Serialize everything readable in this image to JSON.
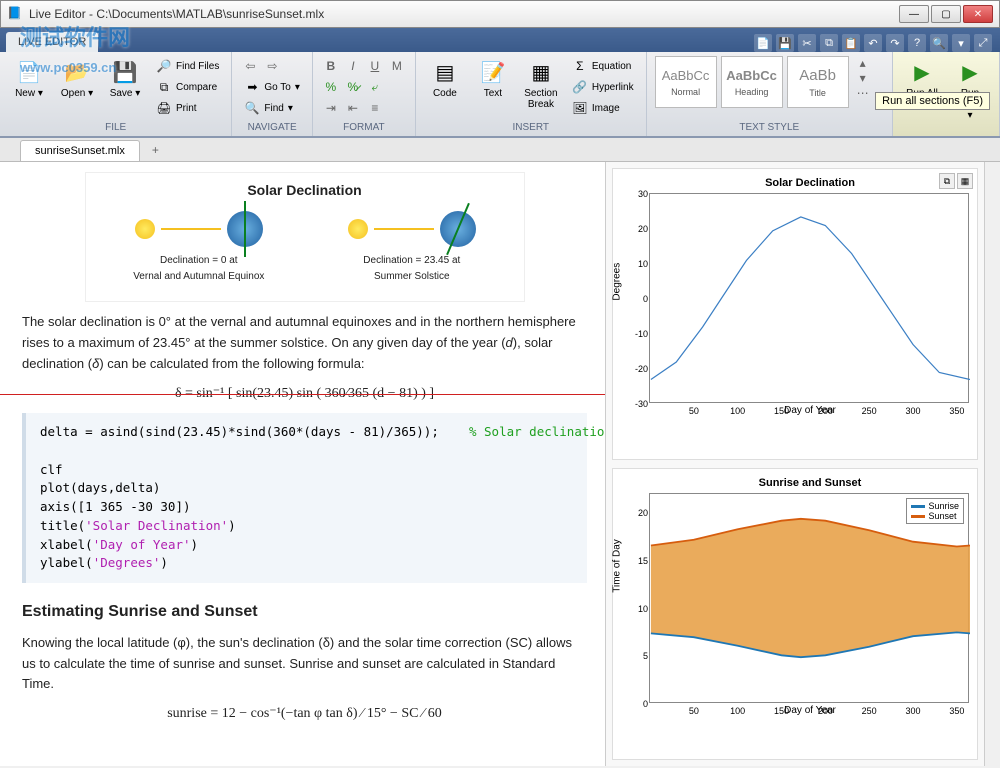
{
  "window": {
    "title": "Live Editor - C:\\Documents\\MATLAB\\sunriseSunset.mlx",
    "watermark_text": "测试软件网",
    "watermark_url": "www.pc0359.cn"
  },
  "ribbon_tab": "LIVE EDITOR",
  "qat_icons": [
    "new-doc",
    "save",
    "cut",
    "copy",
    "paste",
    "undo",
    "redo",
    "help",
    "search",
    "pin",
    "expand",
    "menu"
  ],
  "ribbon": {
    "file": {
      "label": "FILE",
      "new": "New",
      "open": "Open",
      "save": "Save",
      "find_files": "Find Files",
      "compare": "Compare",
      "print": "Print"
    },
    "navigate": {
      "label": "NAVIGATE",
      "goto": "Go To",
      "find": "Find"
    },
    "format": {
      "label": "FORMAT"
    },
    "insert": {
      "label": "INSERT",
      "code": "Code",
      "text": "Text",
      "section": "Section Break",
      "equation": "Equation",
      "hyperlink": "Hyperlink",
      "image": "Image"
    },
    "textstyle": {
      "label": "TEXT STYLE",
      "normal": "Normal",
      "heading": "Heading",
      "title": "Title"
    },
    "run": {
      "runall": "Run All",
      "runsection": "Run Section"
    },
    "tooltip": "Run all sections (F5)"
  },
  "doc_tab": "sunriseSunset.mlx",
  "document": {
    "fig_title": "Solar Declination",
    "decl_left": "Declination = 0 at\nVernal and Autumnal Equinox",
    "decl_right": "Declination = 23.45 at\nSummer Solstice",
    "para1_a": "The solar declination is ",
    "para1_b": "0°",
    "para1_c": " at the vernal and autumnal equinoxes and in the northern hemisphere rises to a maximum of ",
    "para1_d": "23.45°",
    "para1_e": " at the summer solstice.  On any given day of the year (",
    "para1_f": "d",
    "para1_g": "), solar declination (",
    "para1_h": "δ",
    "para1_i": ") can be calculated from the following formula:",
    "formula1": "δ = sin⁻¹ [ sin(23.45) sin ( 360⁄365 (d − 81) ) ]",
    "code1": "delta = asind(sind(23.45)*sind(360*(days - 81)/365));    % Solar declination\n\nclf\nplot(days,delta)\naxis([1 365 -30 30])\ntitle('Solar Declination')\nxlabel('Day of Year')\nylabel('Degrees')",
    "heading2": "Estimating Sunrise and Sunset",
    "para2": "Knowing the local latitude (φ), the sun's declination (δ) and the solar time correction (SC) allows us to calculate the time of sunrise and sunset.  Sunrise and sunset are calculated in Standard Time.",
    "formula2": "sunrise = 12 − cos⁻¹(−tan φ tan δ) ⁄ 15° − SC ⁄ 60"
  },
  "chart1": {
    "title": "Solar Declination",
    "xlabel": "Day of Year",
    "ylabel": "Degrees",
    "xlim": [
      0,
      365
    ],
    "ylim": [
      -30,
      30
    ],
    "xticks": [
      50,
      100,
      150,
      200,
      250,
      300,
      350
    ],
    "yticks": [
      -30,
      -20,
      -10,
      0,
      10,
      20,
      30
    ],
    "line_color": "#3b7fc4",
    "background_color": "#ffffff",
    "border_color": "#888888",
    "points": [
      [
        1,
        -23.0
      ],
      [
        30,
        -18.0
      ],
      [
        60,
        -8.0
      ],
      [
        81,
        0.0
      ],
      [
        110,
        11.0
      ],
      [
        140,
        19.5
      ],
      [
        172,
        23.45
      ],
      [
        200,
        21.0
      ],
      [
        230,
        13.0
      ],
      [
        265,
        0.0
      ],
      [
        300,
        -13.0
      ],
      [
        330,
        -21.0
      ],
      [
        365,
        -23.0
      ]
    ]
  },
  "chart2": {
    "title": "Sunrise and Sunset",
    "xlabel": "Day of Year",
    "ylabel": "Time of Day",
    "xlim": [
      0,
      365
    ],
    "ylim": [
      0,
      22
    ],
    "xticks": [
      50,
      100,
      150,
      200,
      250,
      300,
      350
    ],
    "yticks": [
      0,
      5,
      10,
      15,
      20
    ],
    "sunrise_color": "#1f77b4",
    "sunset_color": "#d65d0e",
    "fill_color": "#e8a24a",
    "legend_sunrise": "Sunrise",
    "legend_sunset": "Sunset",
    "sunrise": [
      [
        1,
        7.4
      ],
      [
        50,
        7.0
      ],
      [
        100,
        6.1
      ],
      [
        150,
        5.1
      ],
      [
        172,
        4.9
      ],
      [
        200,
        5.1
      ],
      [
        250,
        6.0
      ],
      [
        300,
        7.1
      ],
      [
        350,
        7.5
      ],
      [
        365,
        7.4
      ]
    ],
    "sunset": [
      [
        1,
        16.6
      ],
      [
        50,
        17.2
      ],
      [
        100,
        18.3
      ],
      [
        150,
        19.2
      ],
      [
        172,
        19.4
      ],
      [
        200,
        19.2
      ],
      [
        250,
        18.2
      ],
      [
        300,
        17.0
      ],
      [
        350,
        16.5
      ],
      [
        365,
        16.6
      ]
    ]
  }
}
